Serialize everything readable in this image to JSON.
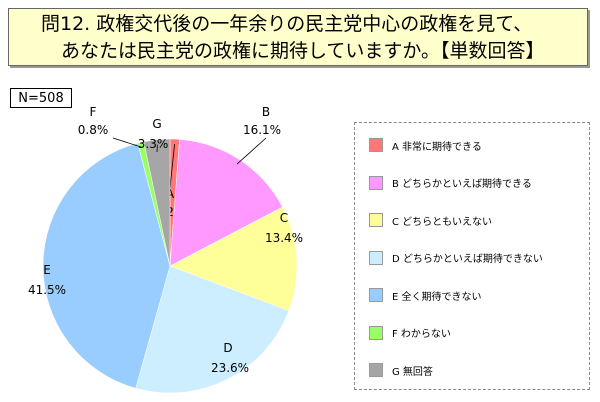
{
  "title": {
    "line1": "問12. 政権交代後の一年余りの民主党中心の政権を見て、",
    "line2": "あなたは民主党の政権に期待していますか。【単数回答】"
  },
  "sample": "N=508",
  "chart_data": {
    "type": "pie",
    "start": "top",
    "direction": "clockwise",
    "categories": [
      "A",
      "B",
      "C",
      "D",
      "E",
      "F",
      "G"
    ],
    "legend": [
      "非常に期待できる",
      "どちらかといえば期待できる",
      "どちらともいえない",
      "どちらかといえば期待できない",
      "全く期待できない",
      "わからない",
      "無回答"
    ],
    "values": [
      1.2,
      16.1,
      13.4,
      23.6,
      41.5,
      0.8,
      3.3
    ],
    "labels": [
      "1.2%",
      "16.1%",
      "13.4%",
      "23.6%",
      "41.5%",
      "0.8%",
      "3.3%"
    ],
    "colors": [
      "#FF7777",
      "#FF99FF",
      "#FFFF99",
      "#CCEEFF",
      "#99CCFF",
      "#99FF66",
      "#A6A6A6"
    ],
    "legend_placement": "right"
  }
}
